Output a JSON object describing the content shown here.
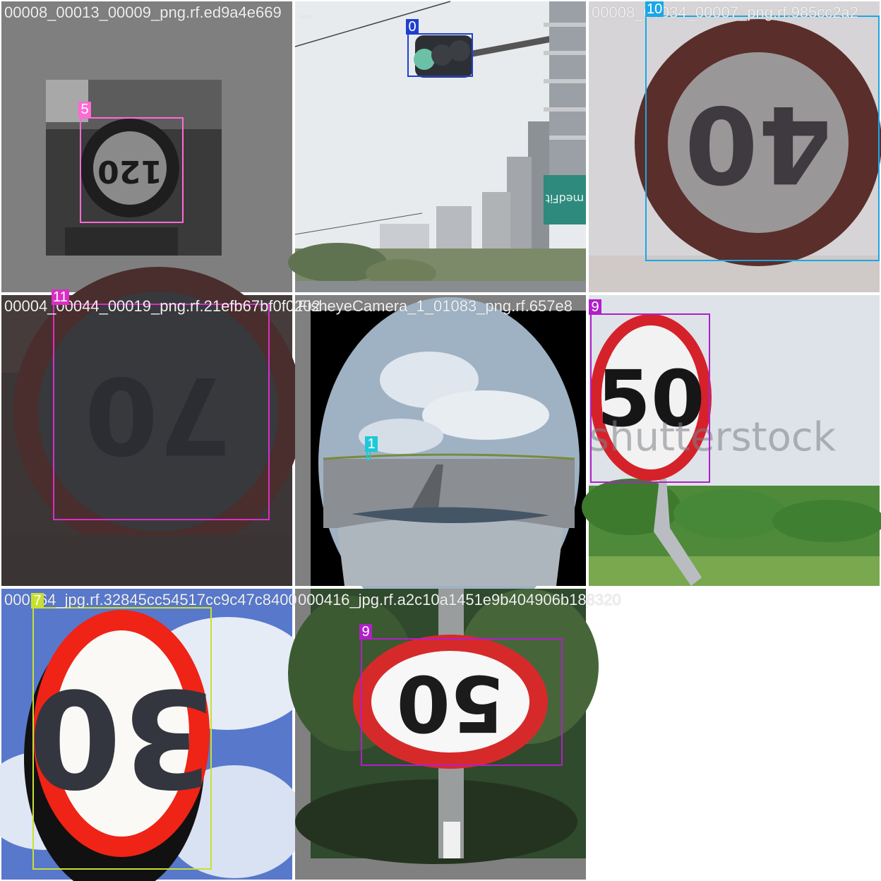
{
  "mosaic": {
    "tiles": [
      {
        "filename": "00008_00013_00009_png.rf.ed9a4e669",
        "labels": [
          {
            "cls": "5",
            "color": "#ff6ad5"
          }
        ]
      },
      {
        "filename": "...",
        "labels": [
          {
            "cls": "0",
            "color": "#1f3fd0"
          }
        ]
      },
      {
        "filename": "00008_00034_00007_png.rf.985cc2a2",
        "labels": [
          {
            "cls": "10",
            "color": "#19a7e8"
          }
        ]
      },
      {
        "filename": "00004_00044_00019_png.rf.21efb67bf0f0202",
        "labels": [
          {
            "cls": "11",
            "color": "#d92fc4"
          }
        ]
      },
      {
        "filename": "FisheyeCamera_1_01083_png.rf.657e8",
        "labels": [
          {
            "cls": "1",
            "color": "#1ec8d8"
          }
        ]
      },
      {
        "filename": "",
        "labels": [
          {
            "cls": "9",
            "color": "#b020c8"
          }
        ]
      },
      {
        "filename": "000764_jpg.rf.32845cc54517cc9c47c8400",
        "labels": [
          {
            "cls": "7",
            "color": "#c8e030"
          }
        ]
      },
      {
        "filename": "000416_jpg.rf.a2c10a1451e9b404906b188320",
        "labels": [
          {
            "cls": "9",
            "color": "#b020c8"
          }
        ]
      }
    ]
  },
  "signs": {
    "t0": "120",
    "t2": "40",
    "t3": "70",
    "t5": "50",
    "t5_watermark": "shutterstock",
    "t6": "30",
    "t7": "50",
    "building_sign": "medFit"
  }
}
